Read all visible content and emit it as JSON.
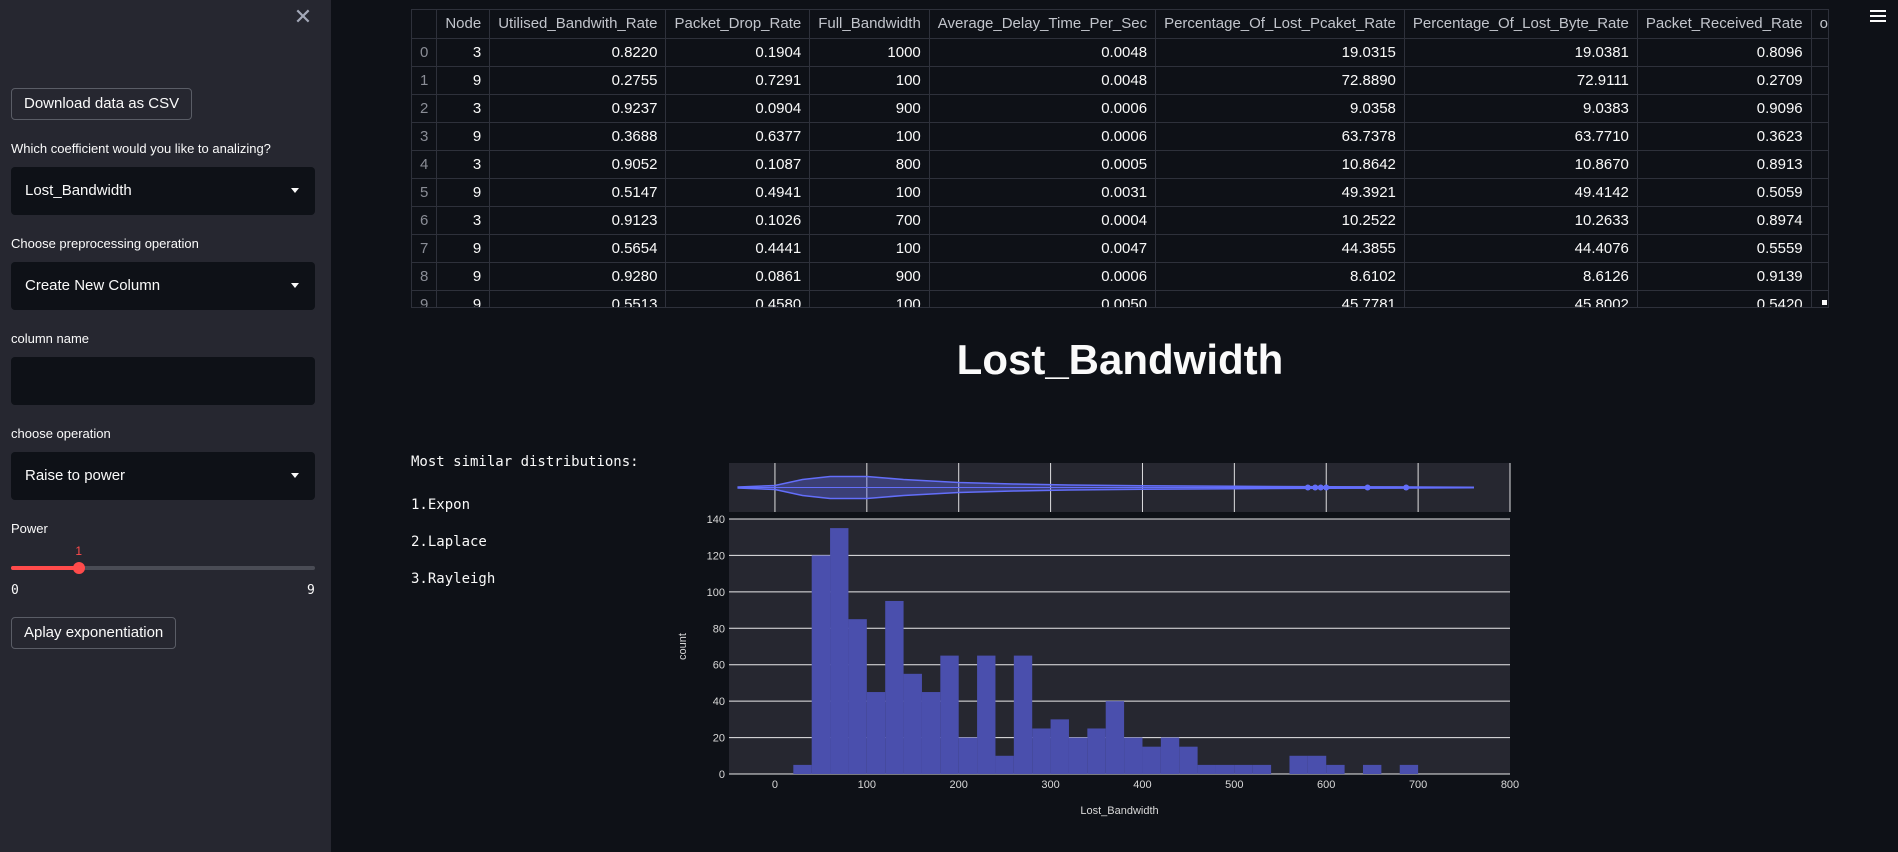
{
  "sidebar": {
    "download_label": "Download data as CSV",
    "coef_label": "Which coefficient would you like to analizing?",
    "coef_value": "Lost_Bandwidth",
    "preproc_label": "Choose preprocessing operation",
    "preproc_value": "Create New Column",
    "colname_label": "column name",
    "colname_value": "",
    "op_label": "choose operation",
    "op_value": "Raise to power",
    "power_label": "Power",
    "power_value": 1,
    "power_min": 0,
    "power_max": 9,
    "apply_label": "Aplay exponentiation"
  },
  "table": {
    "columns": [
      "",
      "Node",
      "Utilised_Bandwith_Rate",
      "Packet_Drop_Rate",
      "Full_Bandwidth",
      "Average_Delay_Time_Per_Sec",
      "Percentage_Of_Lost_Pcaket_Rate",
      "Percentage_Of_Lost_Byte_Rate",
      "Packet_Received_Rate",
      "of_Used_Bandwidth"
    ],
    "rows": [
      [
        "0",
        "3",
        "0.8220",
        "0.1904",
        "1000",
        "0.0048",
        "19.0315",
        "19.0381",
        "0.8096",
        ""
      ],
      [
        "1",
        "9",
        "0.2755",
        "0.7291",
        "100",
        "0.0048",
        "72.8890",
        "72.9111",
        "0.2709",
        ""
      ],
      [
        "2",
        "3",
        "0.9237",
        "0.0904",
        "900",
        "0.0006",
        "9.0358",
        "9.0383",
        "0.9096",
        ""
      ],
      [
        "3",
        "9",
        "0.3688",
        "0.6377",
        "100",
        "0.0006",
        "63.7378",
        "63.7710",
        "0.3623",
        ""
      ],
      [
        "4",
        "3",
        "0.9052",
        "0.1087",
        "800",
        "0.0005",
        "10.8642",
        "10.8670",
        "0.8913",
        ""
      ],
      [
        "5",
        "9",
        "0.5147",
        "0.4941",
        "100",
        "0.0031",
        "49.3921",
        "49.4142",
        "0.5059",
        ""
      ],
      [
        "6",
        "3",
        "0.9123",
        "0.1026",
        "700",
        "0.0004",
        "10.2522",
        "10.2633",
        "0.8974",
        ""
      ],
      [
        "7",
        "9",
        "0.5654",
        "0.4441",
        "100",
        "0.0047",
        "44.3855",
        "44.4076",
        "0.5559",
        ""
      ],
      [
        "8",
        "9",
        "0.9280",
        "0.0861",
        "900",
        "0.0006",
        "8.6102",
        "8.6126",
        "0.9139",
        ""
      ],
      [
        "9",
        "9",
        "0.5513",
        "0.4580",
        "100",
        "0.0050",
        "45.7781",
        "45.8002",
        "0.5420",
        ""
      ]
    ]
  },
  "main": {
    "title": "Lost_Bandwidth",
    "similar_header": "Most similar distributions:",
    "similar": [
      "1.Expon",
      "2.Laplace",
      "3.Rayleigh"
    ]
  },
  "chart_data": {
    "type": "bar",
    "subtype": "histogram with violin marginal",
    "xlabel": "Lost_Bandwidth",
    "ylabel": "count",
    "xlim": [
      -50,
      800
    ],
    "ylim": [
      0,
      140
    ],
    "xticks": [
      0,
      100,
      200,
      300,
      400,
      500,
      600,
      700,
      800
    ],
    "yticks": [
      0,
      20,
      40,
      60,
      80,
      100,
      120,
      140
    ],
    "bin_width": 20,
    "bins": [
      {
        "x": 20,
        "count": 5
      },
      {
        "x": 40,
        "count": 120
      },
      {
        "x": 60,
        "count": 135
      },
      {
        "x": 80,
        "count": 85
      },
      {
        "x": 100,
        "count": 45
      },
      {
        "x": 120,
        "count": 95
      },
      {
        "x": 140,
        "count": 55
      },
      {
        "x": 160,
        "count": 45
      },
      {
        "x": 180,
        "count": 65
      },
      {
        "x": 200,
        "count": 20
      },
      {
        "x": 220,
        "count": 65
      },
      {
        "x": 240,
        "count": 10
      },
      {
        "x": 260,
        "count": 65
      },
      {
        "x": 280,
        "count": 25
      },
      {
        "x": 300,
        "count": 30
      },
      {
        "x": 320,
        "count": 20
      },
      {
        "x": 340,
        "count": 25
      },
      {
        "x": 360,
        "count": 40
      },
      {
        "x": 380,
        "count": 20
      },
      {
        "x": 400,
        "count": 15
      },
      {
        "x": 420,
        "count": 20
      },
      {
        "x": 440,
        "count": 15
      },
      {
        "x": 460,
        "count": 5
      },
      {
        "x": 480,
        "count": 5
      },
      {
        "x": 500,
        "count": 5
      },
      {
        "x": 520,
        "count": 5
      },
      {
        "x": 560,
        "count": 10
      },
      {
        "x": 580,
        "count": 10
      },
      {
        "x": 600,
        "count": 5
      },
      {
        "x": 640,
        "count": 5
      },
      {
        "x": 680,
        "count": 5
      }
    ],
    "violin": {
      "range": [
        -40,
        760
      ],
      "outliers": [
        580,
        588,
        594,
        600,
        645,
        687
      ]
    },
    "bar_color": "#4a4fad",
    "violin_color": "#636efa",
    "plot_bg": "#262730"
  }
}
